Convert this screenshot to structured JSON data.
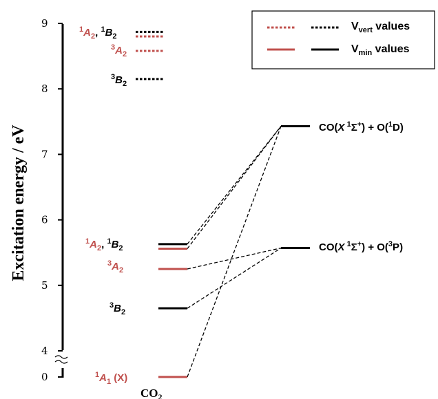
{
  "chart_data": {
    "type": "energy-level diagram",
    "ylabel": "Excitation energy / eV",
    "y_ticks": [
      "0",
      "4",
      "5",
      "6",
      "7",
      "8",
      "9"
    ],
    "axis_break": "between 0 and 4",
    "x_category": "CO",
    "x_category_sub": "2",
    "colors": {
      "singlet": "#c0504d",
      "triplet": "#000000"
    },
    "legend": {
      "placement": "top-right",
      "vert": {
        "text": "V",
        "sub": "vert",
        "rest": " values"
      },
      "min": {
        "text": "V",
        "sub": "min",
        "rest": " values"
      }
    },
    "series": [
      {
        "name": "Vvert",
        "style": "dotted",
        "levels": [
          {
            "state": "1B2",
            "energy": 8.87,
            "color": "triplet"
          },
          {
            "state": "1A2",
            "energy": 8.8,
            "color": "singlet"
          },
          {
            "state": "3A2",
            "energy": 8.58,
            "color": "singlet"
          },
          {
            "state": "3B2",
            "energy": 8.15,
            "color": "triplet"
          }
        ]
      },
      {
        "name": "Vmin",
        "style": "solid",
        "levels": [
          {
            "state": "1B2",
            "energy": 5.63,
            "color": "triplet"
          },
          {
            "state": "1A2",
            "energy": 5.56,
            "color": "singlet"
          },
          {
            "state": "3A2",
            "energy": 5.25,
            "color": "singlet"
          },
          {
            "state": "3B2",
            "energy": 4.65,
            "color": "triplet"
          },
          {
            "state": "1A1",
            "energy": 0.0,
            "color": "singlet"
          }
        ]
      }
    ],
    "products": [
      {
        "id": "1D",
        "energy": 7.43
      },
      {
        "id": "3P",
        "energy": 5.57
      }
    ],
    "correlations": [
      [
        "1A1",
        "1D"
      ],
      [
        "1A2",
        "1D"
      ],
      [
        "1B2",
        "1D"
      ],
      [
        "3A2",
        "3P"
      ],
      [
        "3B2",
        "3P"
      ]
    ],
    "labels": {
      "vvert_pair": {
        "a": "A",
        "a_sup": "1",
        "a_sub": "2",
        "sep": ", ",
        "b": "B",
        "b_sup": "1",
        "b_sub": "2"
      },
      "vvert_3a2": {
        "sup": "3",
        "main": "A",
        "sub": "2"
      },
      "vvert_3b2": {
        "sup": "3",
        "main": "B",
        "sub": "2"
      },
      "vmin_pair": {
        "a": "A",
        "a_sup": "1",
        "a_sub": "2",
        "sep": ", ",
        "b": "B",
        "b_sup": "1",
        "b_sub": "2"
      },
      "vmin_3a2": {
        "sup": "3",
        "main": "A",
        "sub": "2"
      },
      "vmin_3b2": {
        "sup": "3",
        "main": "B",
        "sub": "2"
      },
      "vmin_1a1": {
        "sup": "1",
        "main": "A",
        "sub": "1",
        "rest": " (X)"
      },
      "prod_1d": {
        "pre": "CO(",
        "x": "X",
        "sup1": " 1",
        "sym": "Σ",
        "plus": "+",
        "mid": ") + O(",
        "sup2": "1",
        "term": "D",
        "close": ")"
      },
      "prod_3p": {
        "pre": "CO(",
        "x": "X",
        "sup1": " 1",
        "sym": "Σ",
        "plus": "+",
        "mid": ") + O(",
        "sup2": "3",
        "term": "P",
        "close": ")"
      }
    }
  }
}
